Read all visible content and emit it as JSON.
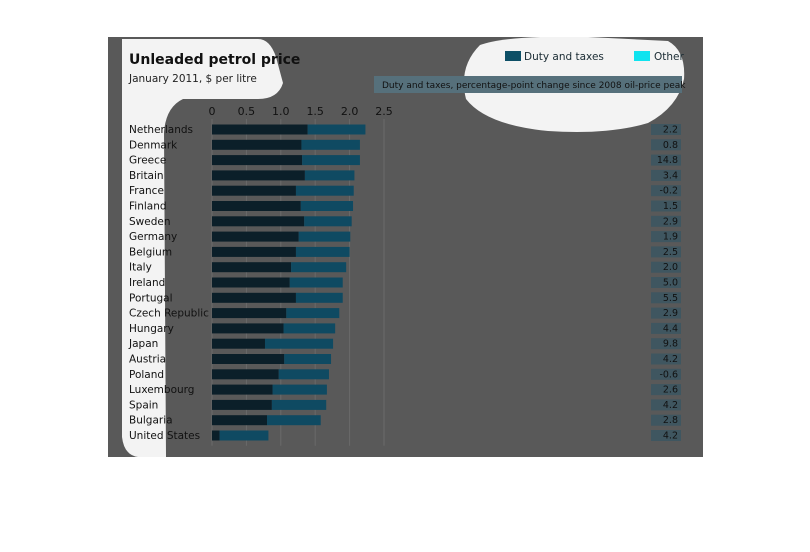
{
  "chart_data": {
    "type": "bar",
    "stacked": true,
    "orientation": "horizontal",
    "title": "Unleaded petrol price",
    "subtitle": "January 2011, $ per litre",
    "xlim": [
      0,
      2.5
    ],
    "xticks": [
      "0",
      "0.5",
      "1.0",
      "1.5",
      "2.0",
      "2.5"
    ],
    "grid": true,
    "legend_position": "top-right",
    "categories": [
      "Netherlands",
      "Denmark",
      "Greece",
      "Britain",
      "France",
      "Finland",
      "Sweden",
      "Germany",
      "Belgium",
      "Italy",
      "Ireland",
      "Portugal",
      "Czech Republic",
      "Hungary",
      "Japan",
      "Austria",
      "Poland",
      "Luxembourg",
      "Spain",
      "Bulgaria",
      "United States"
    ],
    "series": [
      {
        "name": "Duty and taxes",
        "color": "#0d4f66",
        "values": [
          1.39,
          1.3,
          1.31,
          1.35,
          1.22,
          1.29,
          1.34,
          1.26,
          1.22,
          1.15,
          1.13,
          1.22,
          1.08,
          1.04,
          0.77,
          1.05,
          0.97,
          0.88,
          0.87,
          0.8,
          0.11
        ]
      },
      {
        "name": "Other",
        "color": "#0fe3ef",
        "values": [
          0.84,
          0.85,
          0.84,
          0.72,
          0.84,
          0.76,
          0.69,
          0.75,
          0.78,
          0.8,
          0.77,
          0.68,
          0.77,
          0.75,
          0.99,
          0.68,
          0.73,
          0.79,
          0.79,
          0.78,
          0.71
        ]
      }
    ],
    "side_label": "Duty and taxes, percentage-point change since 2008 oil-price peak",
    "side_values": [
      "2.2",
      "0.8",
      "14.8",
      "3.4",
      "-0.2",
      "1.5",
      "2.9",
      "1.9",
      "2.5",
      "2.0",
      "5.0",
      "5.5",
      "2.9",
      "4.4",
      "9.8",
      "4.2",
      "-0.6",
      "2.6",
      "4.2",
      "2.8",
      "4.2"
    ]
  },
  "colors": {
    "panel_background": "#595959",
    "duty_bar_dark": "#0b1f29",
    "other_bar": "#0f4a62",
    "value_box": "#3f5660",
    "gridline": "#6a6a6a"
  }
}
